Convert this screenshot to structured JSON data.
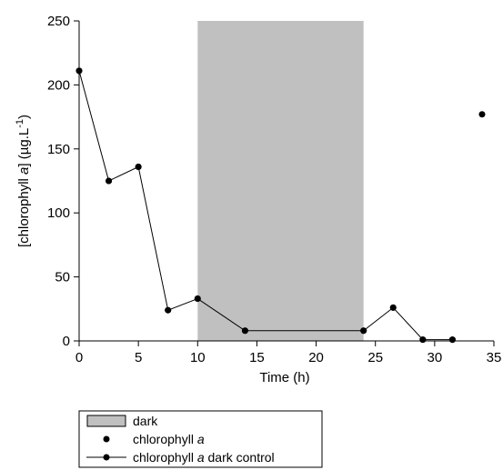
{
  "chart_data": {
    "type": "scatter",
    "title": "",
    "xlabel": "Time (h)",
    "ylabel": {
      "prefix": "[chlorophyll ",
      "italic": "a",
      "middle": "] (µg.L",
      "sup": "-1",
      "suffix": ")"
    },
    "xlim": [
      0,
      35
    ],
    "ylim": [
      0,
      250
    ],
    "xticks": [
      0,
      5,
      10,
      15,
      20,
      25,
      30,
      35
    ],
    "yticks": [
      0,
      50,
      100,
      150,
      200,
      250
    ],
    "grid": false,
    "dark_period": {
      "x": [
        10,
        24
      ],
      "color": "#c0c0c0"
    },
    "series": [
      {
        "name": {
          "prefix": "chlorophyll ",
          "italic": "a",
          "suffix": ""
        },
        "style": "markers",
        "x": [
          0,
          2.5,
          5,
          7.5,
          10,
          14,
          24,
          26.5,
          29,
          31.5,
          34
        ],
        "y": [
          211,
          125,
          136,
          24,
          33,
          8,
          8,
          26,
          1,
          1,
          177
        ]
      },
      {
        "name": {
          "prefix": "chlorophyll ",
          "italic": "a",
          "suffix": " dark control"
        },
        "style": "line+markers",
        "x": [
          0,
          2.5,
          5,
          7.5,
          10,
          14,
          24,
          26.5,
          29,
          31.5
        ],
        "y": [
          211,
          125,
          136,
          24,
          33,
          8,
          8,
          26,
          1,
          1
        ]
      }
    ],
    "legend": {
      "position": "bottom-left",
      "entries": [
        {
          "symbol": "box",
          "label": {
            "prefix": "dark",
            "italic": "",
            "suffix": ""
          }
        },
        {
          "symbol": "dot",
          "label": {
            "prefix": "chlorophyll ",
            "italic": "a",
            "suffix": ""
          }
        },
        {
          "symbol": "line-dot",
          "label": {
            "prefix": "chlorophyll ",
            "italic": "a",
            "suffix": " dark control"
          }
        }
      ]
    },
    "colors": {
      "marker": "#000000",
      "line": "#000000",
      "shade": "#c0c0c0"
    }
  }
}
